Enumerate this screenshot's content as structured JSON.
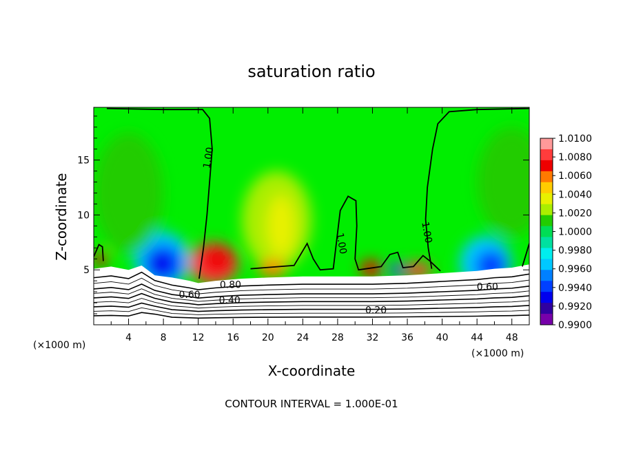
{
  "chart_data": {
    "type": "heatmap",
    "title": "saturation ratio",
    "xlabel": "X-coordinate",
    "ylabel": "Z-coordinate",
    "x_unit": "(×1000 m)",
    "x_ticks": [
      4,
      8,
      12,
      16,
      20,
      24,
      28,
      32,
      36,
      40,
      44,
      48
    ],
    "y_ticks": [
      5,
      10,
      15
    ],
    "xlim": [
      0,
      50
    ],
    "ylim": [
      0,
      19.8
    ],
    "note": "CONTOUR INTERVAL = 1.000E-01",
    "colorbar": {
      "levels": [
        "1.0100",
        "1.0080",
        "1.0060",
        "1.0040",
        "1.0020",
        "1.0000",
        "0.9980",
        "0.9960",
        "0.9940",
        "0.9920",
        "0.9900"
      ],
      "colors": [
        "#ff9a9a",
        "#ff3c3c",
        "#ee0000",
        "#ff7a00",
        "#ffcc00",
        "#e8f000",
        "#aaee00",
        "#22cc00",
        "#00dd55",
        "#00e0a0",
        "#00eeee",
        "#00c8ff",
        "#0080ff",
        "#0040ff",
        "#0000ee",
        "#3000a0",
        "#7700aa"
      ]
    },
    "contour_labels": [
      {
        "text": "1.00",
        "x": 13.2,
        "z": 15.2,
        "rot": -80
      },
      {
        "text": "1.00",
        "x": 28.4,
        "z": 7.4,
        "rot": 80
      },
      {
        "text": "1.00",
        "x": 38.2,
        "z": 8.4,
        "rot": 80
      },
      {
        "text": "0.80",
        "x": 15.7,
        "z": 3.6,
        "rot": 0
      },
      {
        "text": "0.60",
        "x": 11.0,
        "z": 2.7,
        "rot": 0
      },
      {
        "text": "0.40",
        "x": 15.6,
        "z": 2.2,
        "rot": 0
      },
      {
        "text": "0.20",
        "x": 32.4,
        "z": 1.3,
        "rot": 0
      },
      {
        "text": "0.60",
        "x": 45.2,
        "z": 3.4,
        "rot": 0
      }
    ],
    "color_blobs": [
      {
        "x": 13.8,
        "z": 5.6,
        "rx": 2.8,
        "rz": 1.9,
        "color": "#ff3c3c"
      },
      {
        "x": 14.2,
        "z": 5.9,
        "rx": 1.9,
        "rz": 1.3,
        "color": "#ee0000"
      },
      {
        "x": 7.8,
        "z": 5.9,
        "rx": 3.2,
        "rz": 2.6,
        "color": "#00c8ff"
      },
      {
        "x": 8.0,
        "z": 5.6,
        "rx": 2.2,
        "rz": 1.7,
        "color": "#0040ff"
      },
      {
        "x": 7.6,
        "z": 5.5,
        "rx": 1.3,
        "rz": 1.1,
        "color": "#0000ee"
      },
      {
        "x": 45.0,
        "z": 5.6,
        "rx": 3.0,
        "rz": 2.5,
        "color": "#00c8ff"
      },
      {
        "x": 45.6,
        "z": 5.4,
        "rx": 1.8,
        "rz": 1.4,
        "color": "#0040ff"
      },
      {
        "x": 21.0,
        "z": 9.5,
        "rx": 4.0,
        "rz": 4.5,
        "color": "#aaee00"
      },
      {
        "x": 21.5,
        "z": 9.0,
        "rx": 1.6,
        "rz": 2.8,
        "color": "#e8f000"
      },
      {
        "x": 20.5,
        "z": 5.1,
        "rx": 1.6,
        "rz": 0.8,
        "color": "#ff7a00"
      },
      {
        "x": 31.8,
        "z": 5.1,
        "rx": 1.2,
        "rz": 0.8,
        "color": "#ee0000"
      },
      {
        "x": 37.2,
        "z": 5.0,
        "rx": 1.6,
        "rz": 0.7,
        "color": "#ff3c3c"
      },
      {
        "x": 34.8,
        "z": 5.0,
        "rx": 0.8,
        "rz": 0.6,
        "color": "#0040ff"
      },
      {
        "x": 0.8,
        "z": 6.0,
        "rx": 0.8,
        "rz": 0.6,
        "color": "#ee0000"
      },
      {
        "x": 48.0,
        "z": 13.0,
        "rx": 4.0,
        "rz": 5.0,
        "color": "#22cc00"
      },
      {
        "x": 4.0,
        "z": 12.0,
        "rx": 4.0,
        "rz": 5.5,
        "color": "#22cc00"
      }
    ]
  }
}
